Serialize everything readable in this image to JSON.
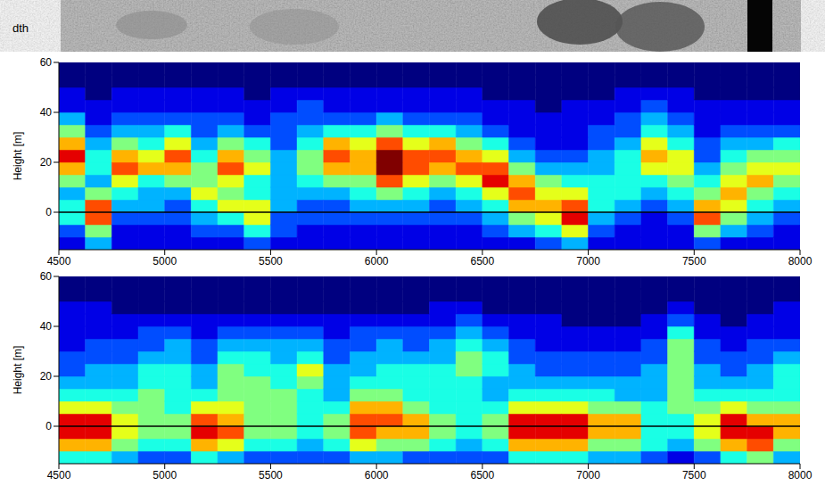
{
  "image_strip": {
    "label": "dth"
  },
  "chart_data": [
    {
      "type": "heatmap",
      "y_label": "Height [m]",
      "xlim": [
        4500,
        8000
      ],
      "xticks": [
        4500,
        5000,
        5500,
        6000,
        6500,
        7000,
        7500,
        8000
      ],
      "ylim": [
        -15,
        60
      ],
      "yticks": [
        0,
        20,
        40,
        60
      ],
      "reference_y": 0,
      "zlim": [
        0,
        10
      ],
      "x": [
        4500,
        4625,
        4750,
        4875,
        5000,
        5125,
        5250,
        5375,
        5500,
        5625,
        5750,
        5875,
        6000,
        6125,
        6250,
        6375,
        6500,
        6625,
        6750,
        6875,
        7000,
        7125,
        7250,
        7375,
        7500,
        7625,
        7750,
        7875
      ],
      "y": [
        -15,
        -10,
        -5,
        0,
        5,
        10,
        15,
        20,
        25,
        30,
        35,
        40,
        45,
        50,
        55
      ],
      "z": [
        [
          1,
          2,
          4,
          4,
          3,
          5,
          7,
          9,
          7,
          5,
          3,
          1,
          1,
          0,
          0
        ],
        [
          3,
          5,
          8,
          8,
          5,
          3,
          4,
          4,
          3,
          2,
          1,
          1,
          0,
          0,
          0
        ],
        [
          1,
          1,
          2,
          3,
          4,
          6,
          8,
          7,
          5,
          3,
          2,
          1,
          1,
          0,
          0
        ],
        [
          1,
          1,
          2,
          3,
          3,
          4,
          7,
          6,
          4,
          3,
          2,
          1,
          1,
          0,
          0
        ],
        [
          1,
          1,
          2,
          2,
          3,
          5,
          7,
          8,
          6,
          4,
          2,
          1,
          1,
          0,
          0
        ],
        [
          1,
          2,
          3,
          4,
          6,
          5,
          5,
          4,
          3,
          2,
          2,
          1,
          1,
          0,
          0
        ],
        [
          1,
          2,
          4,
          6,
          5,
          6,
          8,
          7,
          5,
          3,
          2,
          1,
          1,
          0,
          0
        ],
        [
          2,
          4,
          6,
          6,
          4,
          4,
          6,
          5,
          4,
          2,
          1,
          1,
          0,
          0,
          0
        ],
        [
          1,
          2,
          2,
          3,
          3,
          3,
          3,
          3,
          2,
          2,
          2,
          1,
          1,
          0,
          0
        ],
        [
          1,
          1,
          2,
          2,
          3,
          4,
          5,
          5,
          4,
          3,
          2,
          2,
          1,
          0,
          0
        ],
        [
          1,
          1,
          2,
          2,
          3,
          5,
          7,
          8,
          7,
          4,
          2,
          1,
          1,
          0,
          0
        ],
        [
          1,
          1,
          2,
          3,
          4,
          5,
          7,
          7,
          6,
          4,
          2,
          1,
          1,
          0,
          0
        ],
        [
          1,
          1,
          2,
          3,
          5,
          8,
          10,
          10,
          8,
          5,
          3,
          1,
          1,
          0,
          0
        ],
        [
          1,
          1,
          2,
          3,
          4,
          6,
          8,
          8,
          6,
          4,
          2,
          1,
          1,
          0,
          0
        ],
        [
          1,
          1,
          2,
          2,
          3,
          5,
          7,
          8,
          7,
          4,
          2,
          1,
          1,
          0,
          0
        ],
        [
          1,
          1,
          2,
          3,
          4,
          6,
          8,
          7,
          5,
          3,
          2,
          1,
          1,
          0,
          0
        ],
        [
          1,
          2,
          3,
          4,
          6,
          9,
          8,
          6,
          4,
          2,
          1,
          1,
          0,
          0,
          0
        ],
        [
          1,
          3,
          5,
          7,
          8,
          7,
          5,
          3,
          2,
          1,
          1,
          1,
          0,
          0,
          0
        ],
        [
          2,
          4,
          6,
          7,
          6,
          5,
          3,
          2,
          1,
          1,
          1,
          0,
          0,
          0,
          0
        ],
        [
          3,
          6,
          9,
          8,
          6,
          4,
          3,
          2,
          1,
          1,
          1,
          1,
          0,
          0,
          0
        ],
        [
          1,
          2,
          3,
          4,
          4,
          4,
          3,
          3,
          2,
          2,
          1,
          1,
          0,
          0,
          0
        ],
        [
          1,
          1,
          2,
          3,
          4,
          4,
          4,
          4,
          3,
          2,
          2,
          1,
          1,
          0,
          0
        ],
        [
          1,
          1,
          1,
          2,
          3,
          4,
          6,
          7,
          6,
          4,
          3,
          2,
          1,
          0,
          0
        ],
        [
          1,
          1,
          2,
          3,
          4,
          5,
          6,
          6,
          4,
          3,
          2,
          1,
          1,
          0,
          0
        ],
        [
          2,
          5,
          8,
          7,
          5,
          4,
          3,
          2,
          2,
          1,
          1,
          1,
          0,
          0,
          0
        ],
        [
          1,
          3,
          5,
          6,
          7,
          6,
          5,
          4,
          3,
          2,
          1,
          1,
          0,
          0,
          0
        ],
        [
          1,
          2,
          3,
          4,
          5,
          7,
          6,
          5,
          3,
          2,
          1,
          1,
          0,
          0,
          0
        ],
        [
          1,
          1,
          2,
          3,
          4,
          5,
          6,
          5,
          4,
          2,
          1,
          1,
          0,
          0,
          0
        ]
      ]
    },
    {
      "type": "heatmap",
      "y_label": "Height [m]",
      "xlim": [
        4500,
        8000
      ],
      "xticks": [
        4500,
        5000,
        5500,
        6000,
        6500,
        7000,
        7500,
        8000
      ],
      "ylim": [
        -15,
        60
      ],
      "yticks": [
        0,
        20,
        40,
        60
      ],
      "reference_y": 0,
      "zlim": [
        0,
        10
      ],
      "x": [
        4500,
        4625,
        4750,
        4875,
        5000,
        5125,
        5250,
        5375,
        5500,
        5625,
        5750,
        5875,
        6000,
        6125,
        6250,
        6375,
        6500,
        6625,
        6750,
        6875,
        7000,
        7125,
        7250,
        7375,
        7500,
        7625,
        7750,
        7875
      ],
      "y": [
        -15,
        -10,
        -5,
        0,
        5,
        10,
        15,
        20,
        25,
        30,
        35,
        40,
        45,
        50,
        55
      ],
      "z": [
        [
          4,
          7,
          9,
          9,
          6,
          4,
          3,
          2,
          2,
          1,
          1,
          1,
          1,
          0,
          0
        ],
        [
          4,
          7,
          9,
          9,
          6,
          4,
          3,
          3,
          2,
          2,
          1,
          1,
          1,
          0,
          0
        ],
        [
          3,
          5,
          6,
          6,
          5,
          4,
          3,
          3,
          2,
          2,
          1,
          1,
          0,
          0,
          0
        ],
        [
          2,
          4,
          5,
          5,
          5,
          5,
          4,
          4,
          3,
          2,
          2,
          1,
          0,
          0,
          0
        ],
        [
          2,
          4,
          5,
          5,
          4,
          4,
          4,
          4,
          3,
          3,
          2,
          1,
          0,
          0,
          0
        ],
        [
          4,
          7,
          9,
          8,
          6,
          4,
          3,
          3,
          2,
          2,
          1,
          1,
          0,
          0,
          0
        ],
        [
          3,
          6,
          8,
          7,
          6,
          5,
          5,
          5,
          4,
          3,
          2,
          1,
          0,
          0,
          0
        ],
        [
          2,
          4,
          5,
          5,
          5,
          5,
          5,
          4,
          4,
          3,
          2,
          1,
          0,
          0,
          0
        ],
        [
          2,
          4,
          5,
          5,
          5,
          5,
          4,
          4,
          3,
          3,
          2,
          1,
          0,
          0,
          0
        ],
        [
          2,
          3,
          4,
          4,
          4,
          4,
          5,
          6,
          4,
          3,
          2,
          1,
          0,
          0,
          0
        ],
        [
          2,
          4,
          5,
          5,
          4,
          3,
          3,
          3,
          2,
          2,
          1,
          1,
          0,
          0,
          0
        ],
        [
          3,
          6,
          8,
          8,
          7,
          5,
          4,
          3,
          3,
          2,
          2,
          1,
          0,
          0,
          0
        ],
        [
          3,
          5,
          7,
          8,
          7,
          5,
          4,
          4,
          3,
          3,
          2,
          1,
          0,
          0,
          0
        ],
        [
          2,
          5,
          7,
          7,
          5,
          4,
          4,
          4,
          3,
          2,
          2,
          1,
          0,
          0,
          0
        ],
        [
          2,
          4,
          5,
          5,
          4,
          4,
          4,
          4,
          3,
          3,
          2,
          1,
          1,
          0,
          0
        ],
        [
          2,
          3,
          4,
          4,
          4,
          4,
          4,
          5,
          5,
          4,
          3,
          2,
          1,
          0,
          0
        ],
        [
          2,
          4,
          5,
          5,
          4,
          3,
          3,
          4,
          4,
          3,
          2,
          1,
          0,
          0,
          0
        ],
        [
          4,
          7,
          9,
          9,
          6,
          4,
          3,
          3,
          2,
          2,
          1,
          1,
          0,
          0,
          0
        ],
        [
          4,
          7,
          9,
          9,
          6,
          4,
          3,
          2,
          2,
          1,
          1,
          1,
          0,
          0,
          0
        ],
        [
          4,
          7,
          9,
          9,
          6,
          4,
          3,
          2,
          2,
          1,
          1,
          0,
          0,
          0,
          0
        ],
        [
          3,
          5,
          7,
          7,
          5,
          4,
          3,
          2,
          2,
          1,
          1,
          0,
          0,
          0,
          0
        ],
        [
          3,
          5,
          7,
          7,
          5,
          3,
          3,
          2,
          2,
          1,
          1,
          0,
          0,
          0,
          0
        ],
        [
          2,
          4,
          4,
          4,
          4,
          3,
          3,
          3,
          2,
          2,
          1,
          1,
          0,
          0,
          0
        ],
        [
          1,
          3,
          4,
          4,
          5,
          5,
          5,
          5,
          5,
          5,
          4,
          2,
          1,
          0,
          0
        ],
        [
          2,
          5,
          6,
          6,
          5,
          4,
          3,
          3,
          2,
          2,
          1,
          1,
          0,
          0,
          0
        ],
        [
          4,
          7,
          9,
          9,
          6,
          4,
          3,
          2,
          2,
          1,
          1,
          0,
          0,
          0,
          0
        ],
        [
          5,
          8,
          9,
          7,
          5,
          4,
          3,
          3,
          2,
          2,
          1,
          1,
          0,
          0,
          0
        ],
        [
          3,
          5,
          7,
          7,
          5,
          4,
          4,
          4,
          3,
          2,
          1,
          1,
          1,
          0,
          0
        ]
      ]
    }
  ]
}
